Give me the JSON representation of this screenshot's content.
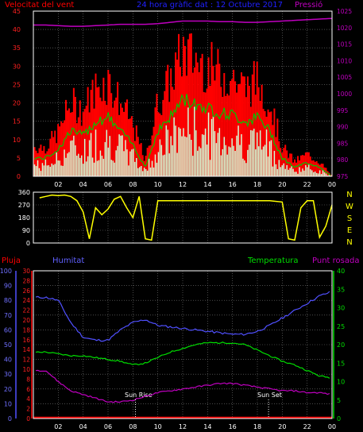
{
  "header": {
    "wind_title": "Velocitat del vent",
    "graph_title": "24 hora gràfic dat : 12 Octubre 2017",
    "pressure_title": "Pressió",
    "rain_label": "Pluja",
    "humidity_label": "Humitat",
    "temperature_label": "Temperatura",
    "dewpoint_label": "Punt rosada",
    "sunrise_label": "Sun Rise",
    "sunset_label": "Sun Set"
  },
  "colors": {
    "wind_gust": "#ff0000",
    "wind_avg": "#00c800",
    "wind_low": "#d8ffd8",
    "pressure": "#c000c0",
    "direction": "#ffff00",
    "rain": "#ff0000",
    "humidity": "#5050ff",
    "temperature": "#00dd00",
    "dewpoint": "#c000c0",
    "frame": "#ffffff",
    "grid": "#7a7a7a"
  },
  "chart_data": [
    {
      "type": "area",
      "panel": "wind",
      "x_ticks": [
        "02",
        "04",
        "06",
        "08",
        "10",
        "12",
        "14",
        "16",
        "18",
        "20",
        "22",
        "00"
      ],
      "y_left_ticks": [
        0,
        5,
        10,
        15,
        20,
        25,
        30,
        35,
        40,
        45
      ],
      "y_left_range": [
        0,
        45
      ],
      "y_right_ticks": [
        975,
        980,
        985,
        990,
        995,
        1000,
        1005,
        1010,
        1015,
        1020,
        1025
      ],
      "y_right_range": [
        975,
        1025
      ],
      "hours": [
        1,
        2,
        3,
        4,
        5,
        6,
        7,
        8,
        9,
        10,
        11,
        12,
        13,
        14,
        15,
        16,
        17,
        18,
        19,
        20,
        21,
        22,
        23,
        24
      ],
      "series": [
        {
          "name": "Velocitat del vent",
          "values": [
            8,
            12,
            20,
            18,
            24,
            26,
            20,
            14,
            4,
            20,
            26,
            34,
            32,
            30,
            28,
            27,
            24,
            26,
            20,
            8,
            4,
            6,
            4,
            0
          ]
        },
        {
          "name": "Pressió",
          "values": [
            1020.8,
            1020.6,
            1020.4,
            1020.4,
            1020.6,
            1020.8,
            1021.0,
            1021.0,
            1021.0,
            1021.2,
            1021.6,
            1022.0,
            1022.0,
            1022.0,
            1021.8,
            1021.8,
            1021.6,
            1021.6,
            1021.8,
            1022.0,
            1022.2,
            1022.4,
            1022.6,
            1022.8
          ]
        }
      ]
    },
    {
      "type": "line",
      "panel": "direction",
      "y_left_ticks": [
        0,
        90,
        180,
        270,
        360
      ],
      "y_left_range": [
        0,
        360
      ],
      "y_right_labels": [
        "N",
        "W",
        "S",
        "E",
        "N"
      ],
      "hours": [
        0.5,
        1,
        1.5,
        2,
        2.5,
        3,
        3.5,
        4,
        4.5,
        5,
        5.5,
        6,
        6.5,
        7,
        7.5,
        8,
        8.5,
        9,
        9.5,
        10,
        11,
        12,
        13,
        14,
        15,
        16,
        17,
        18,
        19,
        20,
        20.5,
        21,
        21.5,
        22,
        22.5,
        23,
        23.5,
        24
      ],
      "series": [
        {
          "name": "direction",
          "values": [
            320,
            330,
            340,
            335,
            340,
            330,
            300,
            220,
            30,
            250,
            200,
            240,
            310,
            330,
            250,
            180,
            330,
            30,
            20,
            300,
            300,
            300,
            300,
            300,
            300,
            300,
            300,
            300,
            300,
            290,
            30,
            20,
            250,
            300,
            300,
            40,
            120,
            270
          ]
        }
      ]
    },
    {
      "type": "line",
      "panel": "weather",
      "y_rain_ticks": [
        0,
        2,
        4,
        6,
        8,
        10,
        12,
        14,
        16,
        18,
        20,
        22,
        24,
        26,
        28,
        30
      ],
      "y_rain_range": [
        0,
        30
      ],
      "y_humidity_ticks": [
        0,
        10,
        20,
        30,
        40,
        50,
        60,
        70,
        80,
        90,
        100
      ],
      "y_humidity_range": [
        0,
        100
      ],
      "y_temperature_ticks": [
        0,
        5,
        10,
        15,
        20,
        25,
        30,
        35,
        40
      ],
      "y_temperature_range": [
        0,
        40
      ],
      "hours": [
        1,
        2,
        3,
        4,
        5,
        6,
        7,
        8,
        9,
        10,
        11,
        12,
        13,
        14,
        15,
        16,
        17,
        18,
        19,
        20,
        21,
        22,
        23,
        24
      ],
      "series": [
        {
          "name": "Pluja",
          "values": [
            0,
            0,
            0,
            0,
            0,
            0,
            0,
            0,
            0,
            0,
            0,
            0,
            0,
            0,
            0,
            0,
            0,
            0,
            0,
            0,
            0,
            0,
            0,
            0
          ]
        },
        {
          "name": "Humitat",
          "values": [
            82,
            80,
            65,
            55,
            53,
            53,
            60,
            65,
            67,
            63,
            62,
            61,
            60,
            59,
            58,
            57,
            57,
            59,
            63,
            68,
            73,
            78,
            83,
            86
          ]
        },
        {
          "name": "Temperatura",
          "values": [
            18,
            17.5,
            17,
            17,
            16.5,
            16,
            15.5,
            14.5,
            15,
            16.5,
            18,
            19,
            20,
            20.5,
            20.5,
            20.5,
            20,
            18.5,
            17,
            15.5,
            14.5,
            13,
            11.5,
            11
          ]
        },
        {
          "name": "Punt rosada",
          "values": [
            13,
            10,
            7.5,
            6.5,
            5.5,
            4.5,
            4.5,
            5,
            6,
            7,
            7.5,
            8,
            8.5,
            9,
            9.5,
            9.5,
            9,
            8.5,
            8,
            7.5,
            7.5,
            7,
            7,
            6.5
          ]
        }
      ],
      "sunrise_hour": 8.2,
      "sunset_hour": 18.9
    }
  ]
}
